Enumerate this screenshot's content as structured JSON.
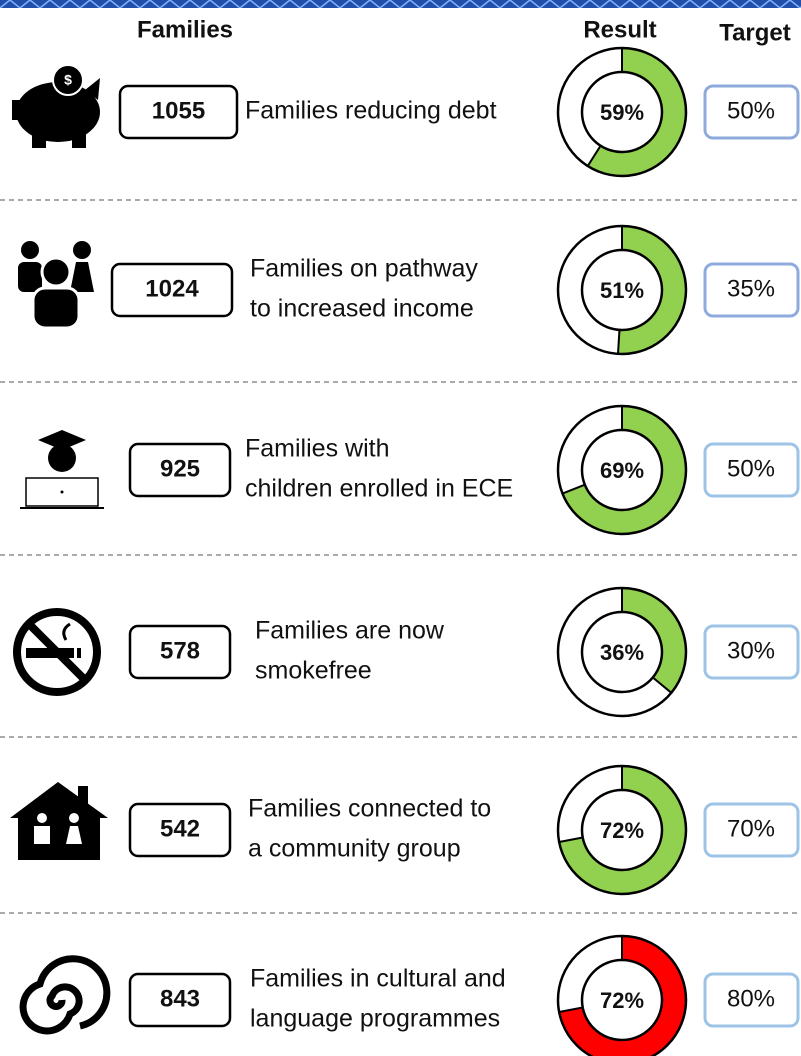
{
  "headers": {
    "families": "Families",
    "result": "Result",
    "target": "Target"
  },
  "rows": [
    {
      "count": 1055,
      "description": [
        "Families reducing debt"
      ],
      "result": 59,
      "result_label": "59%",
      "target": "50%",
      "color": "#92d050"
    },
    {
      "count": 1024,
      "description": [
        "Families on pathway",
        "to increased income"
      ],
      "result": 51,
      "result_label": "51%",
      "target": "35%",
      "color": "#92d050"
    },
    {
      "count": 925,
      "description": [
        "Families with",
        "children enrolled in ECE"
      ],
      "result": 69,
      "result_label": "69%",
      "target": "50%",
      "color": "#92d050"
    },
    {
      "count": 578,
      "description": [
        "Families are now",
        "smokefree"
      ],
      "result": 36,
      "result_label": "36%",
      "target": "30%",
      "color": "#92d050"
    },
    {
      "count": 542,
      "description": [
        "Families connected  to",
        "a community group"
      ],
      "result": 72,
      "result_label": "72%",
      "target": "70%",
      "color": "#92d050"
    },
    {
      "count": 843,
      "description": [
        "Families in cultural and",
        "language programmes"
      ],
      "result": 72,
      "result_label": "72%",
      "target": "80%",
      "color": "#ff0000"
    }
  ]
}
